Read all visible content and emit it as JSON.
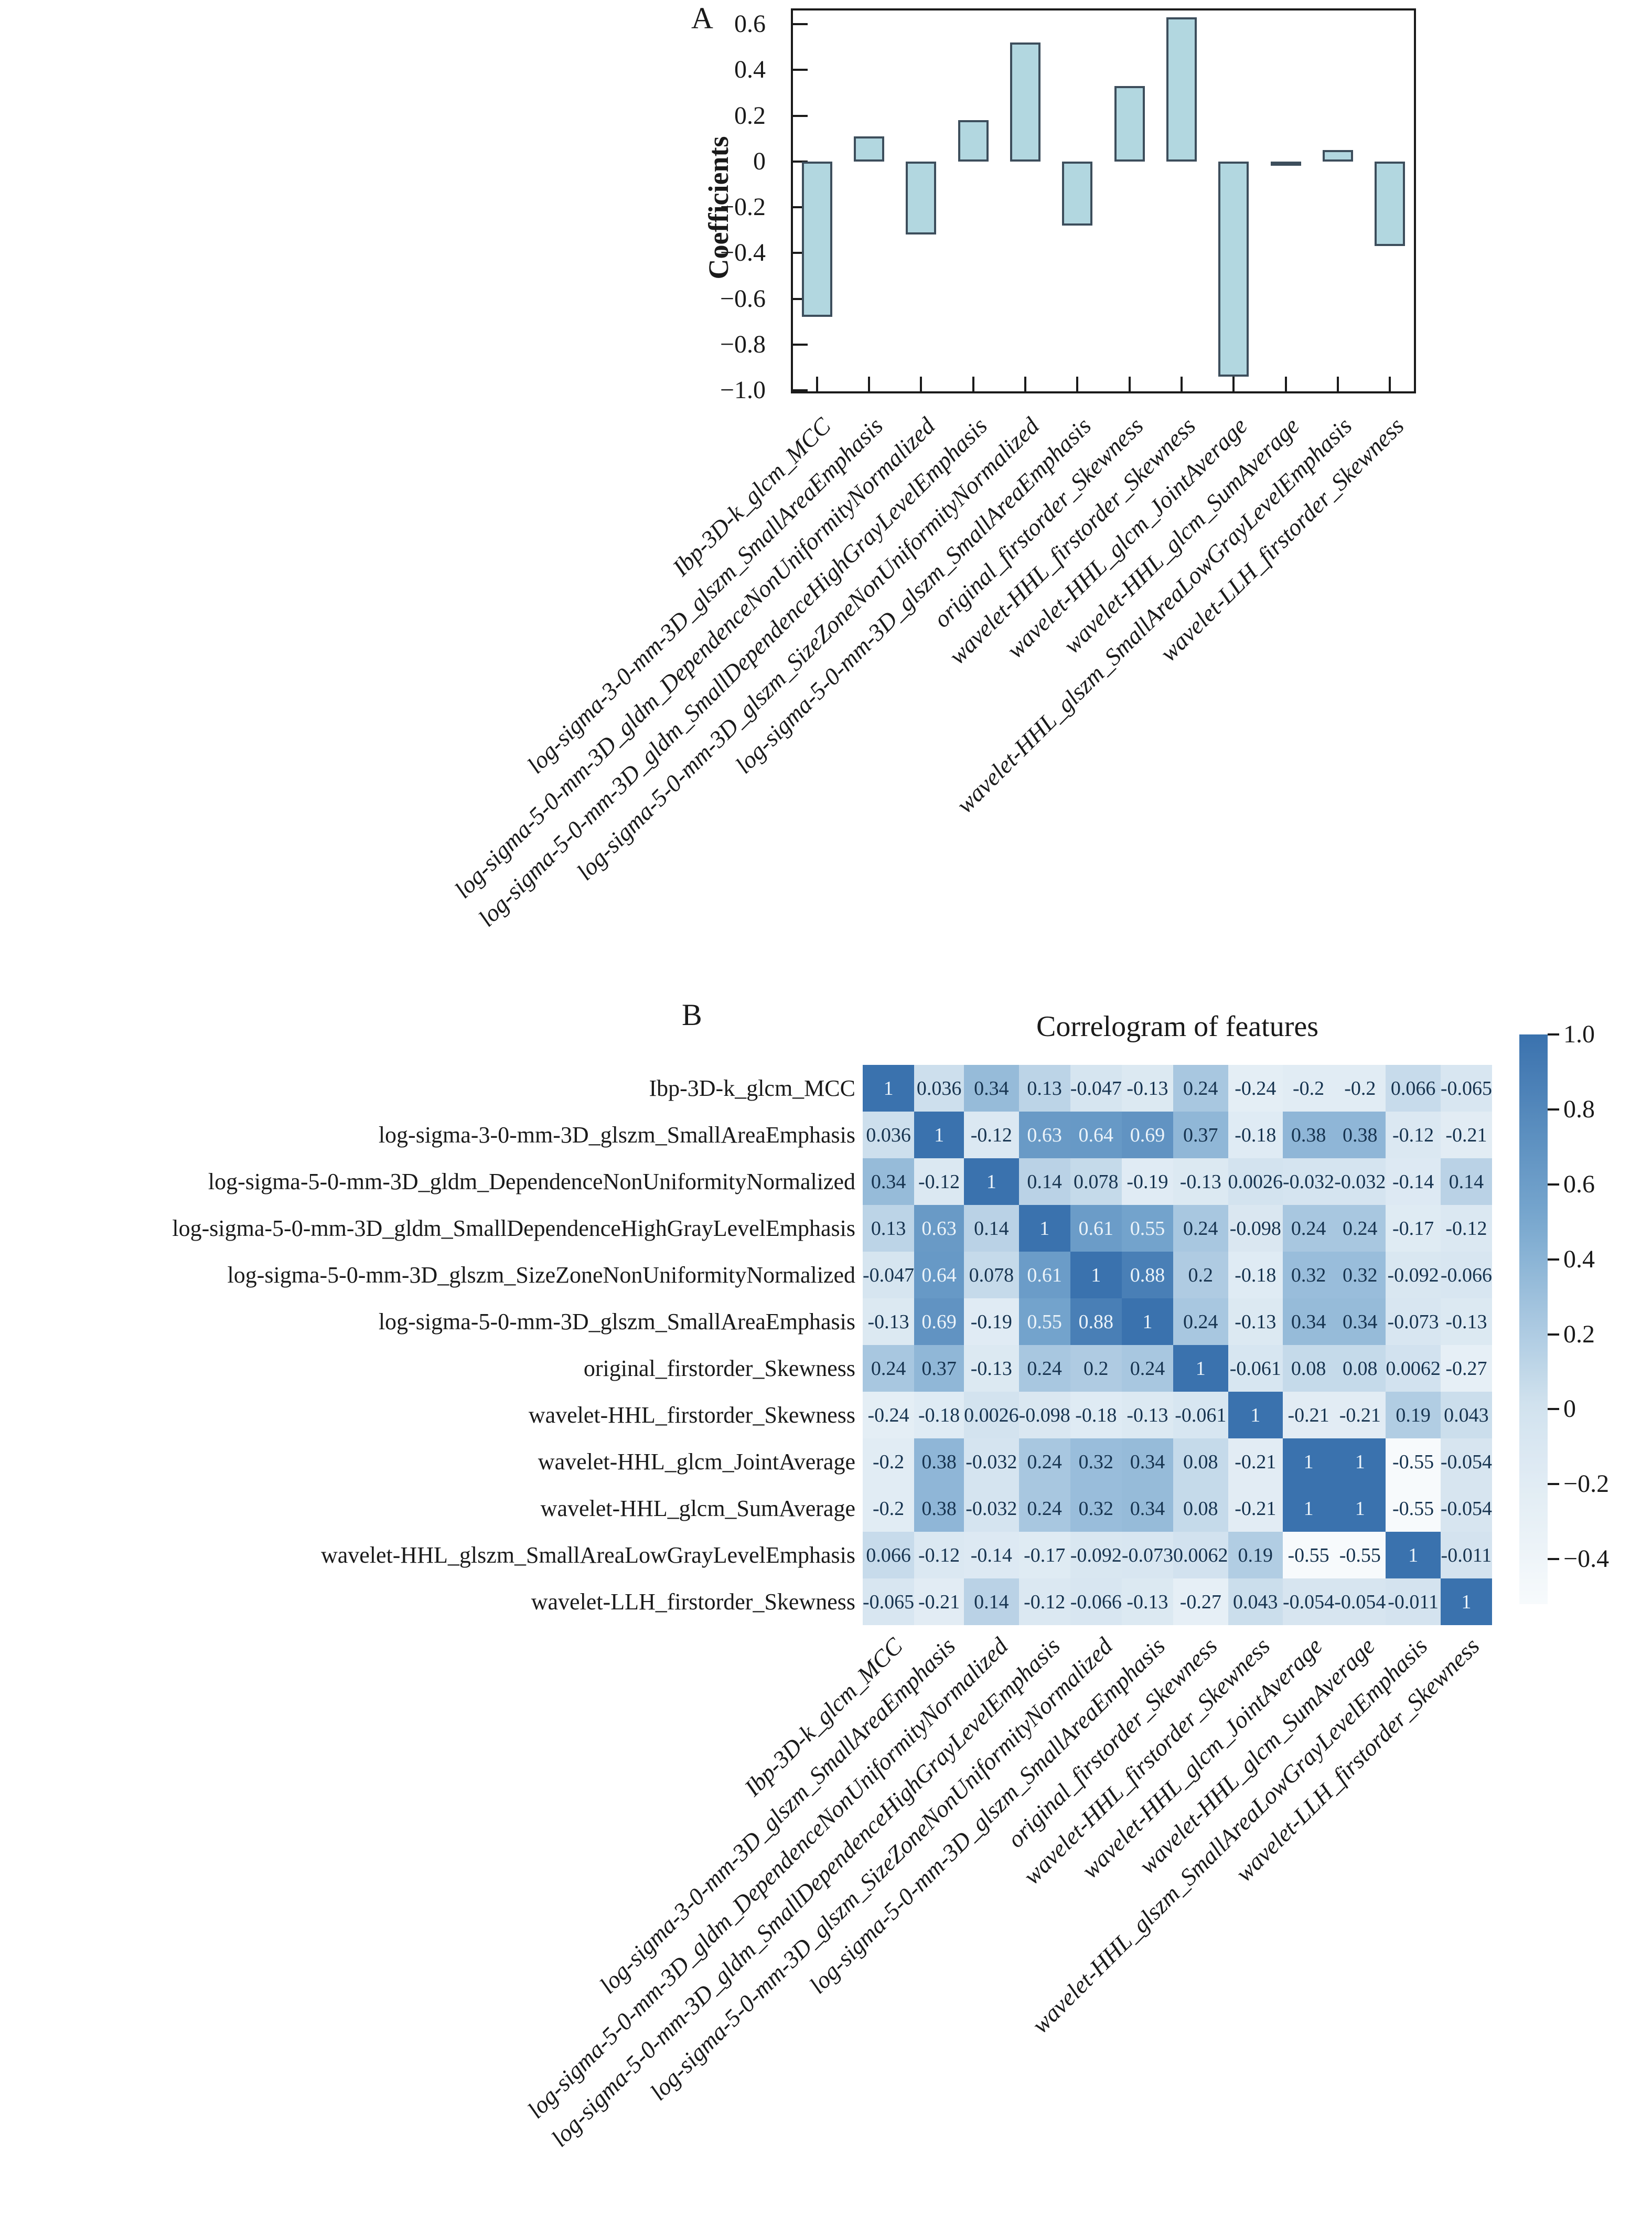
{
  "figure": {
    "panel_a_label": "A",
    "panel_b_label": "B"
  },
  "features": [
    "Ibp-3D-k_glcm_MCC",
    "log-sigma-3-0-mm-3D_glszm_SmallAreaEmphasis",
    "log-sigma-5-0-mm-3D_gldm_DependenceNonUniformityNormalized",
    "log-sigma-5-0-mm-3D_gldm_SmallDependenceHighGrayLevelEmphasis",
    "log-sigma-5-0-mm-3D_glszm_SizeZoneNonUniformityNormalized",
    "log-sigma-5-0-mm-3D_glszm_SmallAreaEmphasis",
    "original_firstorder_Skewness",
    "wavelet-HHL_firstorder_Skewness",
    "wavelet-HHL_glcm_JointAverage",
    "wavelet-HHL_glcm_SumAverage",
    "wavelet-HHL_glszm_SmallAreaLowGrayLevelEmphasis",
    "wavelet-LLH_firstorder_Skewness"
  ],
  "panel_a": {
    "ylabel": "Coefficients",
    "ytick_labels": [
      "0.6",
      "0.4",
      "0.2",
      "0",
      "−0.2",
      "−0.4",
      "−0.6",
      "−0.8",
      "−1.0"
    ],
    "ytick_values": [
      0.6,
      0.4,
      0.2,
      0,
      -0.2,
      -0.4,
      -0.6,
      -0.8,
      -1.0
    ]
  },
  "panel_b": {
    "title": "Correlogram of features",
    "colorbar_tick_labels": [
      "1.0",
      "0.8",
      "0.6",
      "0.4",
      "0.2",
      "0",
      "−0.2",
      "−0.4"
    ],
    "colorbar_tick_values": [
      1.0,
      0.8,
      0.6,
      0.4,
      0.2,
      0,
      -0.2,
      -0.4
    ],
    "colorbar_range": [
      -0.52,
      1.0
    ]
  },
  "colors": {
    "bar_fill": "#b2d7e0",
    "bar_edge": "#3d4e5c",
    "axis": "#1a1a1a",
    "heat_low": "#f7fafc",
    "heat_zero": "#d3e3ef",
    "heat_mid": "#79a8cf",
    "heat_high": "#3a72ae",
    "cell_text_dark": "#16334f",
    "cell_text_light": "#ecf4fa"
  },
  "chart_data": [
    {
      "type": "bar",
      "title": "",
      "xlabel": "",
      "ylabel": "Coefficients",
      "ylim": [
        -1.0,
        0.6
      ],
      "categories": [
        "Ibp-3D-k_glcm_MCC",
        "log-sigma-3-0-mm-3D_glszm_SmallAreaEmphasis",
        "log-sigma-5-0-mm-3D_gldm_DependenceNonUniformityNormalized",
        "log-sigma-5-0-mm-3D_gldm_SmallDependenceHighGrayLevelEmphasis",
        "log-sigma-5-0-mm-3D_glszm_SizeZoneNonUniformityNormalized",
        "log-sigma-5-0-mm-3D_glszm_SmallAreaEmphasis",
        "original_firstorder_Skewness",
        "wavelet-HHL_firstorder_Skewness",
        "wavelet-HHL_glcm_JointAverage",
        "wavelet-HHL_glcm_SumAverage",
        "wavelet-HHL_glszm_SmallAreaLowGrayLevelEmphasis",
        "wavelet-LLH_firstorder_Skewness"
      ],
      "values": [
        -0.68,
        0.11,
        -0.32,
        0.18,
        0.52,
        -0.28,
        0.33,
        0.63,
        -0.94,
        -0.005,
        0.05,
        -0.37
      ]
    },
    {
      "type": "heatmap",
      "title": "Correlogram of features",
      "categories": [
        "Ibp-3D-k_glcm_MCC",
        "log-sigma-3-0-mm-3D_glszm_SmallAreaEmphasis",
        "log-sigma-5-0-mm-3D_gldm_DependenceNonUniformityNormalized",
        "log-sigma-5-0-mm-3D_gldm_SmallDependenceHighGrayLevelEmphasis",
        "log-sigma-5-0-mm-3D_glszm_SizeZoneNonUniformityNormalized",
        "log-sigma-5-0-mm-3D_glszm_SmallAreaEmphasis",
        "original_firstorder_Skewness",
        "wavelet-HHL_firstorder_Skewness",
        "wavelet-HHL_glcm_JointAverage",
        "wavelet-HHL_glcm_SumAverage",
        "wavelet-HHL_glszm_SmallAreaLowGrayLevelEmphasis",
        "wavelet-LLH_firstorder_Skewness"
      ],
      "matrix": [
        [
          1,
          0.036,
          0.34,
          0.13,
          -0.047,
          -0.13,
          0.24,
          -0.24,
          -0.2,
          -0.2,
          0.066,
          -0.065
        ],
        [
          0.036,
          1,
          -0.12,
          0.63,
          0.64,
          0.69,
          0.37,
          -0.18,
          0.38,
          0.38,
          -0.12,
          -0.21
        ],
        [
          0.34,
          -0.12,
          1,
          0.14,
          0.078,
          -0.19,
          -0.13,
          0.0026,
          -0.032,
          -0.032,
          -0.14,
          0.14
        ],
        [
          0.13,
          0.63,
          0.14,
          1,
          0.61,
          0.55,
          0.24,
          -0.098,
          0.24,
          0.24,
          -0.17,
          -0.12
        ],
        [
          -0.047,
          0.64,
          0.078,
          0.61,
          1,
          0.88,
          0.2,
          -0.18,
          0.32,
          0.32,
          -0.092,
          -0.066
        ],
        [
          -0.13,
          0.69,
          -0.19,
          0.55,
          0.88,
          1,
          0.24,
          -0.13,
          0.34,
          0.34,
          -0.073,
          -0.13
        ],
        [
          0.24,
          0.37,
          -0.13,
          0.24,
          0.2,
          0.24,
          1,
          -0.061,
          0.08,
          0.08,
          0.0062,
          -0.27
        ],
        [
          -0.24,
          -0.18,
          0.0026,
          -0.098,
          -0.18,
          -0.13,
          -0.061,
          1,
          -0.21,
          -0.21,
          0.19,
          0.043
        ],
        [
          -0.2,
          0.38,
          -0.032,
          0.24,
          0.32,
          0.34,
          0.08,
          -0.21,
          1,
          1,
          -0.55,
          -0.054
        ],
        [
          -0.2,
          0.38,
          -0.032,
          0.24,
          0.32,
          0.34,
          0.08,
          -0.21,
          1,
          1,
          -0.55,
          -0.054
        ],
        [
          0.066,
          -0.12,
          -0.14,
          -0.17,
          -0.092,
          -0.073,
          0.0062,
          0.19,
          -0.55,
          -0.55,
          1,
          -0.011
        ],
        [
          -0.065,
          -0.21,
          0.14,
          -0.12,
          -0.066,
          -0.13,
          -0.27,
          0.043,
          -0.054,
          -0.054,
          -0.011,
          1
        ]
      ],
      "colorbar": {
        "vmin": -0.52,
        "vmax": 1.0,
        "tick_labels": [
          "1.0",
          "0.8",
          "0.6",
          "0.4",
          "0.2",
          "0",
          "−0.2",
          "−0.4"
        ],
        "tick_values": [
          1.0,
          0.8,
          0.6,
          0.4,
          0.2,
          0,
          -0.2,
          -0.4
        ]
      },
      "legend_position": "right"
    }
  ]
}
